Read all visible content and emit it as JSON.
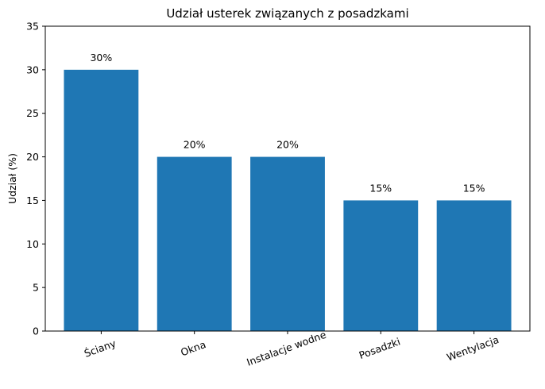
{
  "chart_data": {
    "type": "bar",
    "title": "Udział usterek związanych z posadzkami",
    "ylabel": "Udział (%)",
    "categories": [
      "Ściany",
      "Okna",
      "Instalacje wodne",
      "Posadzki",
      "Wentylacja"
    ],
    "values": [
      30,
      20,
      20,
      15,
      15
    ],
    "value_labels": [
      "30%",
      "20%",
      "20%",
      "15%",
      "15%"
    ],
    "color": "#1f77b4",
    "ylim": [
      0,
      35
    ],
    "yticks": [
      0,
      5,
      10,
      15,
      20,
      25,
      30,
      35
    ],
    "grid": false
  }
}
